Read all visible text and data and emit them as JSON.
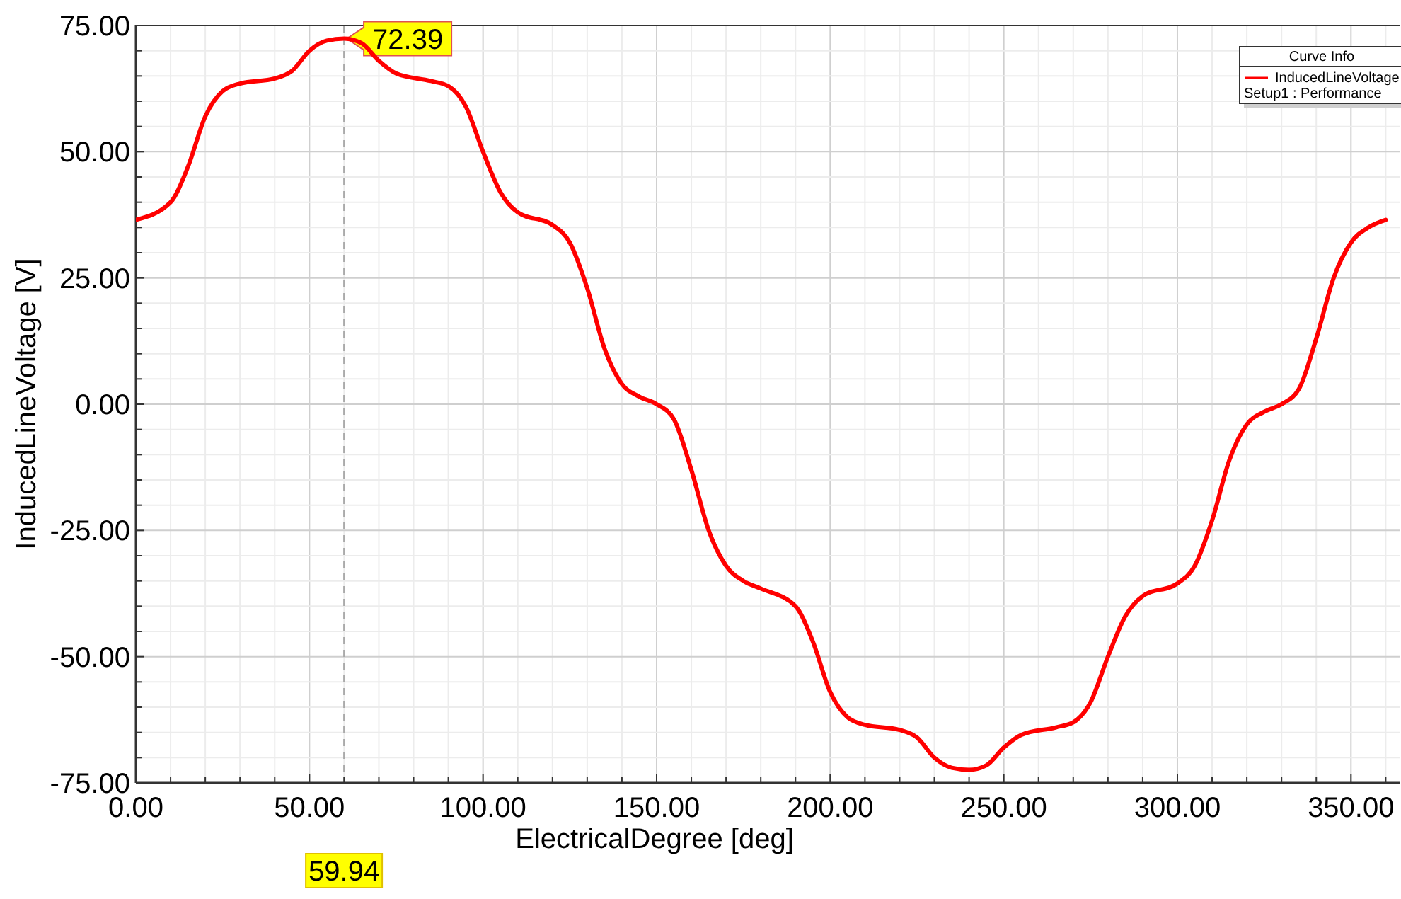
{
  "chart_data": {
    "type": "line",
    "xlabel": "ElectricalDegree [deg]",
    "ylabel": "InducedLineVoltage [V]",
    "legend_title": "Curve Info",
    "legend": "top right",
    "grid": true,
    "line_style": "solid",
    "marker": "none",
    "x": [
      0,
      10,
      15,
      20,
      25,
      30,
      40,
      45,
      50,
      55,
      60,
      65,
      70,
      75,
      85,
      90,
      95,
      100,
      105,
      110,
      120,
      125,
      130,
      135,
      140,
      145,
      150,
      155,
      160,
      165,
      170,
      175,
      180,
      190,
      195,
      200,
      205,
      210,
      220,
      225,
      230,
      235,
      240,
      245,
      250,
      255,
      265,
      270,
      275,
      280,
      285,
      290,
      300,
      305,
      310,
      315,
      320,
      325,
      330,
      335,
      340,
      345,
      350,
      355,
      360
    ],
    "series": [
      {
        "name": "InducedLineVoltage",
        "color": "#ff0000",
        "values": [
          36.5,
          40,
          47,
          57,
          62,
          63.5,
          64.5,
          66,
          70,
          72,
          72.4,
          71.5,
          68,
          65.5,
          64,
          63,
          59,
          50,
          42,
          38,
          35.5,
          32,
          23,
          11,
          4,
          1.5,
          0,
          -3,
          -13,
          -25,
          -32,
          -35,
          -36.5,
          -40,
          -47,
          -57,
          -62,
          -63.5,
          -64.5,
          -66,
          -70,
          -72,
          -72.4,
          -71.5,
          -68,
          -65.5,
          -64,
          -63,
          -59,
          -50,
          -42,
          -38,
          -35.5,
          -32,
          -23,
          -11,
          -4,
          -1.5,
          0,
          3,
          13,
          25,
          32,
          35,
          36.5
        ]
      }
    ],
    "xlim": [
      0,
      364
    ],
    "xticks": [
      {
        "value": 0,
        "label": "0.00"
      },
      {
        "value": 10,
        "label": null
      },
      {
        "value": 20,
        "label": null
      },
      {
        "value": 30,
        "label": null
      },
      {
        "value": 40,
        "label": null
      },
      {
        "value": 50,
        "label": "50.00"
      },
      {
        "value": 60,
        "label": null
      },
      {
        "value": 70,
        "label": null
      },
      {
        "value": 80,
        "label": null
      },
      {
        "value": 90,
        "label": null
      },
      {
        "value": 100,
        "label": "100.00"
      },
      {
        "value": 110,
        "label": null
      },
      {
        "value": 120,
        "label": null
      },
      {
        "value": 130,
        "label": null
      },
      {
        "value": 140,
        "label": null
      },
      {
        "value": 150,
        "label": "150.00"
      },
      {
        "value": 160,
        "label": null
      },
      {
        "value": 170,
        "label": null
      },
      {
        "value": 180,
        "label": null
      },
      {
        "value": 190,
        "label": null
      },
      {
        "value": 200,
        "label": "200.00"
      },
      {
        "value": 210,
        "label": null
      },
      {
        "value": 220,
        "label": null
      },
      {
        "value": 230,
        "label": null
      },
      {
        "value": 240,
        "label": null
      },
      {
        "value": 250,
        "label": "250.00"
      },
      {
        "value": 260,
        "label": null
      },
      {
        "value": 270,
        "label": null
      },
      {
        "value": 280,
        "label": null
      },
      {
        "value": 290,
        "label": null
      },
      {
        "value": 300,
        "label": "300.00"
      },
      {
        "value": 310,
        "label": null
      },
      {
        "value": 320,
        "label": null
      },
      {
        "value": 330,
        "label": null
      },
      {
        "value": 340,
        "label": null
      },
      {
        "value": 350,
        "label": "350.00"
      },
      {
        "value": 360,
        "label": null
      }
    ],
    "ylim": [
      -75,
      75
    ],
    "yticks": [
      {
        "value": -75,
        "label": "-75.00"
      },
      {
        "value": -70,
        "label": null
      },
      {
        "value": -65,
        "label": null
      },
      {
        "value": -60,
        "label": null
      },
      {
        "value": -55,
        "label": null
      },
      {
        "value": -50,
        "label": "-50.00"
      },
      {
        "value": -45,
        "label": null
      },
      {
        "value": -40,
        "label": null
      },
      {
        "value": -35,
        "label": null
      },
      {
        "value": -30,
        "label": null
      },
      {
        "value": -25,
        "label": "-25.00"
      },
      {
        "value": -20,
        "label": null
      },
      {
        "value": -15,
        "label": null
      },
      {
        "value": -10,
        "label": null
      },
      {
        "value": -5,
        "label": null
      },
      {
        "value": 0,
        "label": "0.00"
      },
      {
        "value": 5,
        "label": null
      },
      {
        "value": 10,
        "label": null
      },
      {
        "value": 15,
        "label": null
      },
      {
        "value": 20,
        "label": null
      },
      {
        "value": 25,
        "label": "25.00"
      },
      {
        "value": 30,
        "label": null
      },
      {
        "value": 35,
        "label": null
      },
      {
        "value": 40,
        "label": null
      },
      {
        "value": 45,
        "label": null
      },
      {
        "value": 50,
        "label": "50.00"
      },
      {
        "value": 55,
        "label": null
      },
      {
        "value": 60,
        "label": null
      },
      {
        "value": 65,
        "label": null
      },
      {
        "value": 70,
        "label": null
      },
      {
        "value": 75,
        "label": "75.00"
      }
    ],
    "ref_lines": [
      {
        "axis": "x",
        "value": 59.94,
        "label": "59.94",
        "line_style": "dashed",
        "color": "#aaaaaa"
      }
    ],
    "annotations": [
      {
        "text": "72.39",
        "x": 59.94,
        "y": 72.39
      },
      "Setup1 : Performance"
    ]
  }
}
